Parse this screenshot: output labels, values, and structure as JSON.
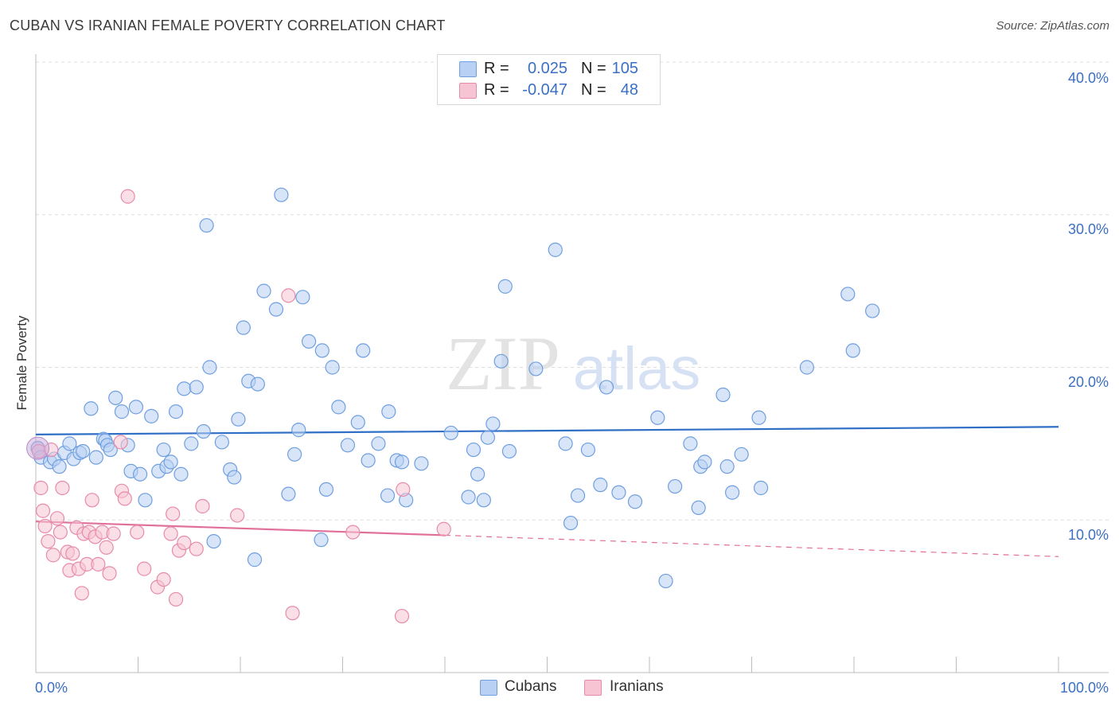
{
  "header": {
    "title": "CUBAN VS IRANIAN FEMALE POVERTY CORRELATION CHART",
    "source": "Source: ZipAtlas.com"
  },
  "legend": {
    "rows": [
      {
        "r_label": "R =",
        "r_value": "0.025",
        "n_label": "N =",
        "n_value": "105",
        "color": "#6f9fe0",
        "fill": "#b8d0f3"
      },
      {
        "r_label": "R =",
        "r_value": "-0.047",
        "n_label": "N =",
        "n_value": "48",
        "color": "#e78bab",
        "fill": "#f7c4d4"
      }
    ]
  },
  "bottom_legend": {
    "items": [
      {
        "label": "Cubans",
        "color": "#6f9fe0",
        "fill": "#b8d0f3"
      },
      {
        "label": "Iranians",
        "color": "#e78bab",
        "fill": "#f7c4d4"
      }
    ]
  },
  "watermark": {
    "left": "ZIP",
    "right": "atlas"
  },
  "chart_data": {
    "type": "scatter",
    "title": "CUBAN VS IRANIAN FEMALE POVERTY CORRELATION CHART",
    "xlabel": "",
    "ylabel": "Female Poverty",
    "xlim": [
      0,
      100
    ],
    "ylim": [
      0,
      40
    ],
    "x_tick_labels": [
      "0.0%",
      "100.0%"
    ],
    "y_ticks": [
      10,
      20,
      30,
      40
    ],
    "y_tick_labels": [
      "10.0%",
      "20.0%",
      "30.0%",
      "40.0%"
    ],
    "grid": true,
    "series": [
      {
        "name": "Cubans",
        "color": "#6f9fe0",
        "fill": "#b8d0f3",
        "trend": {
          "x": [
            0,
            100
          ],
          "y": [
            15.6,
            16.1
          ]
        },
        "points": [
          [
            0.2,
            14.7
          ],
          [
            0.5,
            14.1
          ],
          [
            1.4,
            13.8
          ],
          [
            1.8,
            14.0
          ],
          [
            2.3,
            13.5
          ],
          [
            2.8,
            14.4
          ],
          [
            3.3,
            15.0
          ],
          [
            3.7,
            14.0
          ],
          [
            4.3,
            14.4
          ],
          [
            4.6,
            14.5
          ],
          [
            5.4,
            17.3
          ],
          [
            5.9,
            14.1
          ],
          [
            6.6,
            15.3
          ],
          [
            6.8,
            15.2
          ],
          [
            7.0,
            14.9
          ],
          [
            7.3,
            14.6
          ],
          [
            7.8,
            18.0
          ],
          [
            8.4,
            17.1
          ],
          [
            9.0,
            14.9
          ],
          [
            9.3,
            13.2
          ],
          [
            9.8,
            17.4
          ],
          [
            10.2,
            13.0
          ],
          [
            10.7,
            11.3
          ],
          [
            11.3,
            16.8
          ],
          [
            12.0,
            13.2
          ],
          [
            12.5,
            14.6
          ],
          [
            12.8,
            13.5
          ],
          [
            13.2,
            13.8
          ],
          [
            13.7,
            17.1
          ],
          [
            14.2,
            13.0
          ],
          [
            14.5,
            18.6
          ],
          [
            15.2,
            15.0
          ],
          [
            15.7,
            18.7
          ],
          [
            16.4,
            15.8
          ],
          [
            16.7,
            29.3
          ],
          [
            17.0,
            20.0
          ],
          [
            17.4,
            8.6
          ],
          [
            18.2,
            15.1
          ],
          [
            19.0,
            13.3
          ],
          [
            19.4,
            12.8
          ],
          [
            19.8,
            16.6
          ],
          [
            20.3,
            22.6
          ],
          [
            20.8,
            19.1
          ],
          [
            21.4,
            7.4
          ],
          [
            21.7,
            18.9
          ],
          [
            22.3,
            25.0
          ],
          [
            23.5,
            23.8
          ],
          [
            24.0,
            31.3
          ],
          [
            24.7,
            11.7
          ],
          [
            25.3,
            14.3
          ],
          [
            25.7,
            15.9
          ],
          [
            26.1,
            24.6
          ],
          [
            26.7,
            21.7
          ],
          [
            27.9,
            8.7
          ],
          [
            28.0,
            21.1
          ],
          [
            28.4,
            12.0
          ],
          [
            29.0,
            20.0
          ],
          [
            29.6,
            17.4
          ],
          [
            30.5,
            14.9
          ],
          [
            31.5,
            16.4
          ],
          [
            32.0,
            21.1
          ],
          [
            32.5,
            13.9
          ],
          [
            33.5,
            15.0
          ],
          [
            34.4,
            11.6
          ],
          [
            34.5,
            17.1
          ],
          [
            35.3,
            13.9
          ],
          [
            35.8,
            13.8
          ],
          [
            36.2,
            11.3
          ],
          [
            37.7,
            13.7
          ],
          [
            40.6,
            15.7
          ],
          [
            42.3,
            11.5
          ],
          [
            42.8,
            14.6
          ],
          [
            43.2,
            13.0
          ],
          [
            43.8,
            11.3
          ],
          [
            44.2,
            15.4
          ],
          [
            44.7,
            16.3
          ],
          [
            45.5,
            20.4
          ],
          [
            45.9,
            25.3
          ],
          [
            46.3,
            14.5
          ],
          [
            48.9,
            19.9
          ],
          [
            50.8,
            27.7
          ],
          [
            51.8,
            15.0
          ],
          [
            52.3,
            9.8
          ],
          [
            53.0,
            11.6
          ],
          [
            54.0,
            14.6
          ],
          [
            55.2,
            12.3
          ],
          [
            55.8,
            18.7
          ],
          [
            57.0,
            11.8
          ],
          [
            58.6,
            11.2
          ],
          [
            60.8,
            16.7
          ],
          [
            61.6,
            6.0
          ],
          [
            62.5,
            12.2
          ],
          [
            64.0,
            15.0
          ],
          [
            64.8,
            10.8
          ],
          [
            65.0,
            13.5
          ],
          [
            65.4,
            13.8
          ],
          [
            67.2,
            18.2
          ],
          [
            67.6,
            13.5
          ],
          [
            68.1,
            11.8
          ],
          [
            69.0,
            14.3
          ],
          [
            70.7,
            16.7
          ],
          [
            70.9,
            12.1
          ],
          [
            75.4,
            20.0
          ],
          [
            79.4,
            24.8
          ],
          [
            79.9,
            21.1
          ],
          [
            81.8,
            23.7
          ]
        ]
      },
      {
        "name": "Iranians",
        "color": "#e78bab",
        "fill": "#f7c4d4",
        "trend": {
          "x": [
            0,
            40
          ],
          "y": [
            9.9,
            9.0
          ]
        },
        "trend_dashed": {
          "x": [
            40,
            100
          ],
          "y": [
            9.0,
            7.6
          ]
        },
        "points": [
          [
            0.3,
            14.5
          ],
          [
            0.5,
            12.1
          ],
          [
            0.7,
            10.6
          ],
          [
            0.9,
            9.6
          ],
          [
            1.2,
            8.6
          ],
          [
            1.5,
            14.6
          ],
          [
            1.7,
            7.7
          ],
          [
            2.1,
            10.1
          ],
          [
            2.4,
            9.2
          ],
          [
            2.6,
            12.1
          ],
          [
            3.1,
            7.9
          ],
          [
            3.3,
            6.7
          ],
          [
            3.6,
            7.8
          ],
          [
            4.0,
            9.5
          ],
          [
            4.2,
            6.8
          ],
          [
            4.5,
            5.2
          ],
          [
            4.7,
            9.1
          ],
          [
            5.0,
            7.1
          ],
          [
            5.2,
            9.2
          ],
          [
            5.5,
            11.3
          ],
          [
            5.8,
            8.9
          ],
          [
            6.1,
            7.1
          ],
          [
            6.5,
            9.2
          ],
          [
            6.9,
            8.2
          ],
          [
            7.2,
            6.5
          ],
          [
            7.6,
            9.1
          ],
          [
            8.3,
            15.1
          ],
          [
            8.4,
            11.9
          ],
          [
            8.7,
            11.4
          ],
          [
            9.0,
            31.2
          ],
          [
            9.9,
            9.2
          ],
          [
            10.6,
            6.8
          ],
          [
            11.9,
            5.6
          ],
          [
            12.5,
            6.1
          ],
          [
            13.2,
            9.1
          ],
          [
            13.4,
            10.4
          ],
          [
            13.7,
            4.8
          ],
          [
            14.0,
            8.0
          ],
          [
            14.5,
            8.5
          ],
          [
            15.7,
            8.1
          ],
          [
            16.3,
            10.9
          ],
          [
            19.7,
            10.3
          ],
          [
            24.7,
            24.7
          ],
          [
            25.1,
            3.9
          ],
          [
            31.0,
            9.2
          ],
          [
            35.8,
            3.7
          ],
          [
            35.9,
            12.0
          ],
          [
            39.9,
            9.4
          ]
        ]
      }
    ]
  }
}
